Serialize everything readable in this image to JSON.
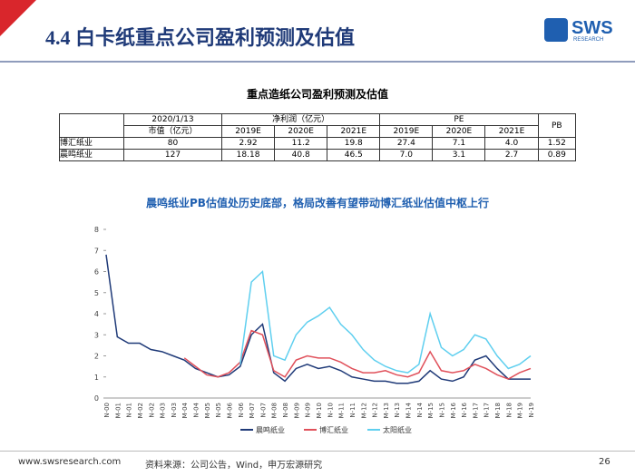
{
  "header": {
    "title": "4.4 白卡纸重点公司盈利预测及估值",
    "logo": "SWS",
    "logo_sub": "RESEARCH"
  },
  "table": {
    "title": "重点造纸公司盈利预测及估值",
    "head1": [
      "2020/1/13",
      "净利润（亿元）",
      "PE",
      "PB"
    ],
    "head2": [
      "市值（亿元）",
      "2019E",
      "2020E",
      "2021E",
      "2019E",
      "2020E",
      "2021E"
    ],
    "rows": [
      [
        "博汇纸业",
        "80",
        "2.92",
        "11.2",
        "19.8",
        "27.4",
        "7.1",
        "4.0",
        "1.52"
      ],
      [
        "晨鸣纸业",
        "127",
        "18.18",
        "40.8",
        "46.5",
        "7.0",
        "3.1",
        "2.7",
        "0.89"
      ]
    ]
  },
  "chart_data": {
    "type": "line",
    "title": "晨鸣纸业PB估值处历史底部，格局改善有望带动博汇纸业估值中枢上行",
    "categories": [
      "N-00",
      "M-01",
      "N-01",
      "M-02",
      "N-02",
      "M-03",
      "N-03",
      "M-04",
      "N-04",
      "M-05",
      "N-05",
      "M-06",
      "N-06",
      "M-07",
      "N-07",
      "M-08",
      "N-08",
      "M-09",
      "N-09",
      "M-10",
      "N-10",
      "M-11",
      "N-11",
      "M-12",
      "N-12",
      "M-13",
      "N-13",
      "M-14",
      "N-14",
      "M-15",
      "N-15",
      "M-16",
      "N-16",
      "M-17",
      "N-17",
      "M-18",
      "N-18",
      "M-19",
      "N-19"
    ],
    "series": [
      {
        "name": "晨鸣纸业",
        "color": "#1f3a78",
        "values": [
          6.8,
          2.9,
          2.6,
          2.6,
          2.3,
          2.2,
          2.0,
          1.8,
          1.4,
          1.2,
          1.0,
          1.1,
          1.5,
          3.0,
          3.5,
          1.2,
          0.8,
          1.4,
          1.6,
          1.4,
          1.5,
          1.3,
          1.0,
          0.9,
          0.8,
          0.8,
          0.7,
          0.7,
          0.8,
          1.3,
          0.9,
          0.8,
          1.0,
          1.8,
          2.0,
          1.4,
          0.9,
          0.9,
          0.9
        ]
      },
      {
        "name": "博汇纸业",
        "color": "#e0505a",
        "values": [
          null,
          null,
          null,
          null,
          null,
          null,
          null,
          1.9,
          1.5,
          1.1,
          1.0,
          1.2,
          1.7,
          3.2,
          3.0,
          1.3,
          1.0,
          1.8,
          2.0,
          1.9,
          1.9,
          1.7,
          1.4,
          1.2,
          1.2,
          1.3,
          1.1,
          1.0,
          1.2,
          2.2,
          1.3,
          1.2,
          1.3,
          1.6,
          1.4,
          1.1,
          0.9,
          1.2,
          1.4
        ]
      },
      {
        "name": "太阳纸业",
        "color": "#5fcfef",
        "values": [
          null,
          null,
          null,
          null,
          null,
          null,
          null,
          null,
          null,
          null,
          null,
          null,
          1.6,
          5.5,
          6.0,
          2.0,
          1.8,
          3.0,
          3.6,
          3.9,
          4.3,
          3.5,
          3.0,
          2.3,
          1.8,
          1.5,
          1.3,
          1.2,
          1.6,
          4.0,
          2.4,
          2.0,
          2.3,
          3.0,
          2.8,
          2.0,
          1.4,
          1.6,
          2.0
        ]
      }
    ],
    "ylim": [
      0,
      8
    ],
    "yticks": [
      0,
      1,
      2,
      3,
      4,
      5,
      6,
      7,
      8
    ],
    "legend": "bottom"
  },
  "footer": {
    "url": "www.swsresearch.com",
    "source": "资料来源：公司公告，Wind，申万宏源研究",
    "page": "26"
  }
}
